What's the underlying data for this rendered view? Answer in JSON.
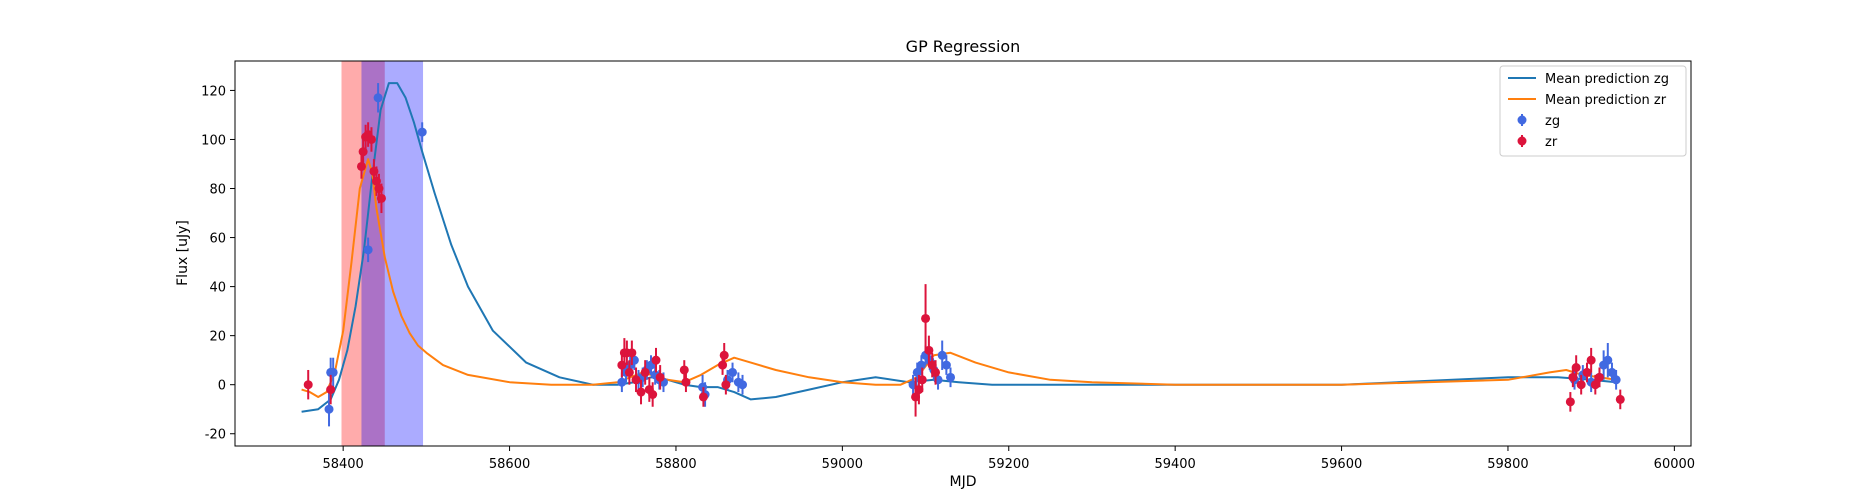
{
  "chart_data": {
    "type": "scatter",
    "title": "GP Regression",
    "xlabel": "MJD",
    "ylabel": "Flux [uJy]",
    "xlim": [
      58270,
      60020
    ],
    "ylim": [
      -25,
      132
    ],
    "xticks": [
      58400,
      58600,
      58800,
      59000,
      59200,
      59400,
      59600,
      59800,
      60000
    ],
    "yticks": [
      -20,
      0,
      20,
      40,
      60,
      80,
      100,
      120
    ],
    "grid": false,
    "legend_position": "top-right",
    "shaded_regions": [
      {
        "name": "zr",
        "x0": 58398,
        "x1": 58450,
        "color": "#ff0000",
        "opacity": 0.33
      },
      {
        "name": "zg",
        "x0": 58422,
        "x1": 58496,
        "color": "#0000ff",
        "opacity": 0.33
      }
    ],
    "lines": [
      {
        "name": "Mean prediction zg",
        "color": "#1f77b4",
        "x": [
          58350,
          58370,
          58385,
          58395,
          58405,
          58415,
          58425,
          58435,
          58445,
          58455,
          58465,
          58475,
          58485,
          58495,
          58510,
          58530,
          58550,
          58580,
          58620,
          58660,
          58700,
          58730,
          58750,
          58770,
          58790,
          58810,
          58830,
          58850,
          58870,
          58890,
          58920,
          58960,
          59000,
          59040,
          59080,
          59110,
          59140,
          59180,
          59250,
          59400,
          59600,
          59800,
          59860,
          59900,
          59930
        ],
        "y": [
          -11,
          -10,
          -6,
          2,
          14,
          32,
          55,
          85,
          112,
          123,
          123,
          117,
          107,
          95,
          78,
          57,
          40,
          22,
          9,
          3,
          0,
          0,
          1,
          3,
          2,
          0,
          -1,
          -1,
          -3,
          -6,
          -5,
          -2,
          1,
          3,
          1,
          2,
          1,
          0,
          0,
          0,
          0,
          3,
          3,
          2,
          1
        ]
      },
      {
        "name": "Mean prediction zr",
        "color": "#ff7f0e",
        "x": [
          58350,
          58360,
          58370,
          58380,
          58390,
          58400,
          58410,
          58420,
          58430,
          58435,
          58440,
          58450,
          58460,
          58470,
          58480,
          58490,
          58500,
          58520,
          58550,
          58600,
          58650,
          58700,
          58730,
          58760,
          58790,
          58810,
          58830,
          58850,
          58870,
          58890,
          58920,
          58960,
          59000,
          59040,
          59070,
          59090,
          59110,
          59130,
          59160,
          59200,
          59250,
          59300,
          59400,
          59600,
          59800,
          59850,
          59870,
          59890,
          59930
        ],
        "y": [
          -2,
          -3,
          -5,
          -3,
          5,
          22,
          50,
          80,
          92,
          86,
          72,
          52,
          38,
          28,
          21,
          16,
          13,
          8,
          4,
          1,
          0,
          0,
          1,
          5,
          2,
          1,
          4,
          8,
          11,
          9,
          6,
          3,
          1,
          0,
          0,
          3,
          12,
          13,
          9,
          5,
          2,
          1,
          0,
          0,
          2,
          5,
          6,
          4,
          2
        ]
      }
    ],
    "series": [
      {
        "name": "zg",
        "color": "#4169e1",
        "x": [
          58383,
          58385,
          58388,
          58430,
          58442,
          58495,
          58735,
          58740,
          58745,
          58750,
          58755,
          58760,
          58765,
          58770,
          58775,
          58780,
          58785,
          58832,
          58835,
          58862,
          58868,
          58875,
          58880,
          59085,
          59090,
          59095,
          59100,
          59105,
          59110,
          59115,
          59120,
          59125,
          59130,
          59880,
          59890,
          59900,
          59910,
          59915,
          59920,
          59925,
          59930
        ],
        "y": [
          -10,
          5,
          5,
          55,
          117,
          103,
          1,
          5,
          8,
          10,
          2,
          3,
          6,
          8,
          4,
          2,
          1,
          -1,
          -4,
          2,
          5,
          1,
          0,
          0,
          5,
          8,
          12,
          10,
          6,
          2,
          12,
          8,
          3,
          2,
          4,
          1,
          3,
          8,
          10,
          5,
          2
        ],
        "err": [
          7,
          6,
          6,
          5,
          6,
          4,
          4,
          4,
          4,
          4,
          4,
          4,
          4,
          4,
          4,
          4,
          4,
          5,
          5,
          4,
          4,
          4,
          4,
          4,
          4,
          4,
          4,
          4,
          4,
          4,
          6,
          4,
          4,
          4,
          4,
          4,
          4,
          6,
          7,
          4,
          4
        ]
      },
      {
        "name": "zr",
        "color": "#dc143c",
        "x": [
          58358,
          58385,
          58422,
          58424,
          58427,
          58430,
          58434,
          58437,
          58440,
          58443,
          58446,
          58735,
          58738,
          58741,
          58744,
          58747,
          58752,
          58758,
          58763,
          58768,
          58772,
          58776,
          58781,
          58810,
          58812,
          58833,
          58856,
          58858,
          58860,
          59088,
          59092,
          59096,
          59100,
          59104,
          59108,
          59112,
          59875,
          59878,
          59882,
          59888,
          59895,
          59900,
          59905,
          59910,
          59935
        ],
        "y": [
          0,
          -2,
          89,
          95,
          101,
          102,
          100,
          87,
          83,
          80,
          76,
          8,
          13,
          13,
          5,
          13,
          2,
          -3,
          5,
          -2,
          -4,
          10,
          3,
          6,
          1,
          -5,
          8,
          12,
          0,
          -5,
          -2,
          2,
          27,
          14,
          8,
          5,
          -7,
          3,
          7,
          0,
          5,
          10,
          0,
          3,
          -6
        ],
        "err": [
          6,
          6,
          5,
          5,
          5,
          5,
          5,
          5,
          6,
          6,
          6,
          5,
          6,
          5,
          5,
          5,
          5,
          5,
          5,
          5,
          5,
          5,
          5,
          4,
          4,
          4,
          4,
          5,
          4,
          8,
          6,
          5,
          14,
          6,
          5,
          5,
          4,
          4,
          5,
          4,
          4,
          5,
          4,
          4,
          4
        ]
      }
    ]
  }
}
